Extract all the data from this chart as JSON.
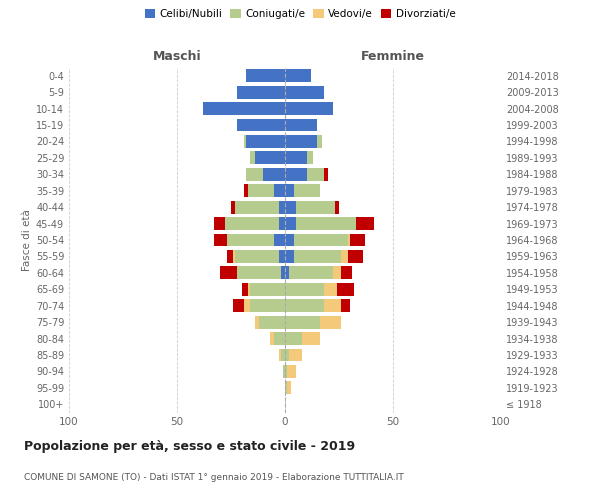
{
  "age_groups": [
    "100+",
    "95-99",
    "90-94",
    "85-89",
    "80-84",
    "75-79",
    "70-74",
    "65-69",
    "60-64",
    "55-59",
    "50-54",
    "45-49",
    "40-44",
    "35-39",
    "30-34",
    "25-29",
    "20-24",
    "15-19",
    "10-14",
    "5-9",
    "0-4"
  ],
  "birth_years": [
    "≤ 1918",
    "1919-1923",
    "1924-1928",
    "1929-1933",
    "1934-1938",
    "1939-1943",
    "1944-1948",
    "1949-1953",
    "1954-1958",
    "1959-1963",
    "1964-1968",
    "1969-1973",
    "1974-1978",
    "1979-1983",
    "1984-1988",
    "1989-1993",
    "1994-1998",
    "1999-2003",
    "2004-2008",
    "2009-2013",
    "2014-2018"
  ],
  "male_celibi": [
    0,
    0,
    0,
    0,
    0,
    0,
    0,
    0,
    2,
    3,
    5,
    3,
    3,
    5,
    10,
    14,
    18,
    22,
    38,
    22,
    18
  ],
  "male_coniugati": [
    0,
    0,
    1,
    2,
    5,
    12,
    16,
    16,
    20,
    20,
    22,
    25,
    20,
    12,
    8,
    2,
    1,
    0,
    0,
    0,
    0
  ],
  "male_vedovi": [
    0,
    0,
    0,
    1,
    2,
    2,
    3,
    1,
    0,
    1,
    0,
    0,
    0,
    0,
    0,
    0,
    0,
    0,
    0,
    0,
    0
  ],
  "male_divorziati": [
    0,
    0,
    0,
    0,
    0,
    0,
    5,
    3,
    8,
    3,
    6,
    5,
    2,
    2,
    0,
    0,
    0,
    0,
    0,
    0,
    0
  ],
  "female_celibi": [
    0,
    0,
    0,
    0,
    0,
    0,
    0,
    0,
    2,
    4,
    4,
    5,
    5,
    4,
    10,
    10,
    15,
    15,
    22,
    18,
    12
  ],
  "female_coniugati": [
    0,
    1,
    1,
    2,
    8,
    16,
    18,
    18,
    20,
    22,
    25,
    28,
    18,
    12,
    8,
    3,
    2,
    0,
    0,
    0,
    0
  ],
  "female_vedovi": [
    0,
    2,
    4,
    6,
    8,
    10,
    8,
    6,
    4,
    3,
    1,
    0,
    0,
    0,
    0,
    0,
    0,
    0,
    0,
    0,
    0
  ],
  "female_divorziati": [
    0,
    0,
    0,
    0,
    0,
    0,
    4,
    8,
    5,
    7,
    7,
    8,
    2,
    0,
    2,
    0,
    0,
    0,
    0,
    0,
    0
  ],
  "color_celibi": "#4472c4",
  "color_coniugati": "#b5cc8e",
  "color_vedovi": "#f5c97a",
  "color_divorziati": "#c00000",
  "title": "Popolazione per età, sesso e stato civile - 2019",
  "subtitle": "COMUNE DI SAMONE (TO) - Dati ISTAT 1° gennaio 2019 - Elaborazione TUTTITALIA.IT",
  "ylabel_left": "Fasce di età",
  "xlabel_left": "Maschi",
  "xlabel_right": "Femmine",
  "xlim": 100,
  "background_color": "#ffffff"
}
